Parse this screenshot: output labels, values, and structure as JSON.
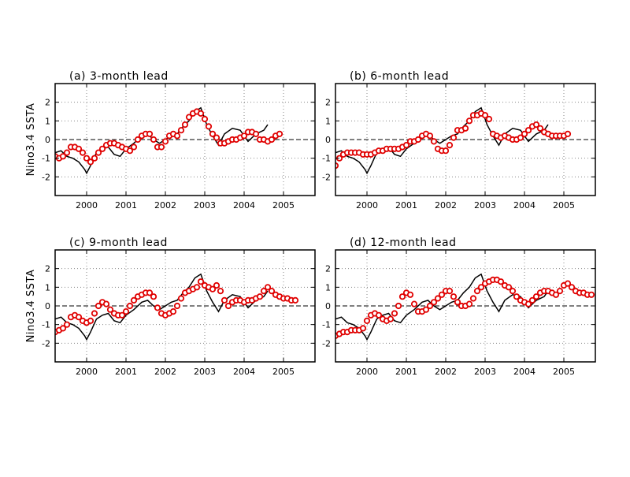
{
  "chart_data": [
    {
      "type": "line",
      "title": "(a) 3-month lead",
      "ylabel": "Nino3.4 SSTA",
      "xlabel": "",
      "x_ticks": [
        "2000",
        "2001",
        "2002",
        "2003",
        "2004",
        "2005"
      ],
      "y_ticks": [
        "2",
        "1",
        "0",
        "-1",
        "-2"
      ],
      "xlim": [
        1999.2,
        2005.8
      ],
      "ylim": [
        -3,
        3
      ],
      "grid": true,
      "colors": {
        "observed": "#000000",
        "forecast": "#e00000"
      },
      "series": [
        {
          "x": [
            1999.2,
            1999.35,
            1999.5,
            1999.65,
            1999.8,
            1999.95,
            2000.0,
            2000.1,
            2000.25,
            2000.4,
            2000.55,
            2000.7,
            2000.85,
            2001.0,
            2001.2,
            2001.4,
            2001.55,
            2001.7,
            2001.85,
            2002.0,
            2002.15,
            2002.3,
            2002.45,
            2002.6,
            2002.75,
            2002.9,
            2003.05,
            2003.2,
            2003.35,
            2003.5,
            2003.7,
            2003.9,
            2004.1,
            2004.3,
            2004.5,
            2004.6
          ],
          "y": [
            -0.7,
            -0.6,
            -0.9,
            -1.0,
            -1.2,
            -1.6,
            -1.8,
            -1.4,
            -0.7,
            -0.5,
            -0.4,
            -0.8,
            -0.9,
            -0.5,
            -0.2,
            0.2,
            0.3,
            0.0,
            -0.2,
            0.0,
            0.2,
            0.3,
            0.7,
            1.0,
            1.5,
            1.7,
            0.8,
            0.2,
            -0.3,
            0.3,
            0.6,
            0.5,
            -0.1,
            0.3,
            0.5,
            0.8
          ]
        },
        {
          "x": [
            1999.2,
            1999.3,
            1999.4,
            1999.5,
            1999.6,
            1999.7,
            1999.8,
            1999.9,
            2000.0,
            2000.1,
            2000.2,
            2000.3,
            2000.4,
            2000.5,
            2000.6,
            2000.7,
            2000.8,
            2000.9,
            2001.0,
            2001.1,
            2001.2,
            2001.3,
            2001.4,
            2001.5,
            2001.6,
            2001.7,
            2001.8,
            2001.9,
            2002.0,
            2002.1,
            2002.2,
            2002.3,
            2002.4,
            2002.5,
            2002.6,
            2002.7,
            2002.8,
            2002.9,
            2003.0,
            2003.1,
            2003.2,
            2003.3,
            2003.4,
            2003.5,
            2003.6,
            2003.7,
            2003.8,
            2003.9,
            2004.0,
            2004.1,
            2004.2,
            2004.3,
            2004.4,
            2004.5,
            2004.6,
            2004.7,
            2004.8,
            2004.9
          ],
          "y": [
            -0.9,
            -1.0,
            -0.9,
            -0.7,
            -0.4,
            -0.4,
            -0.5,
            -0.7,
            -1.0,
            -1.2,
            -1.0,
            -0.7,
            -0.5,
            -0.3,
            -0.2,
            -0.2,
            -0.3,
            -0.4,
            -0.5,
            -0.6,
            -0.4,
            0.0,
            0.2,
            0.3,
            0.3,
            0.0,
            -0.4,
            -0.4,
            -0.1,
            0.2,
            0.3,
            0.2,
            0.5,
            0.8,
            1.2,
            1.4,
            1.5,
            1.4,
            1.1,
            0.7,
            0.3,
            0.1,
            -0.2,
            -0.2,
            -0.1,
            0.0,
            0.0,
            0.1,
            0.2,
            0.4,
            0.4,
            0.3,
            0.0,
            0.0,
            -0.1,
            0.0,
            0.2,
            0.3
          ]
        }
      ]
    },
    {
      "type": "line",
      "title": "(b) 6-month lead",
      "ylabel": "",
      "xlabel": "",
      "x_ticks": [
        "2000",
        "2001",
        "2002",
        "2003",
        "2004",
        "2005"
      ],
      "y_ticks": [
        "2",
        "1",
        "0",
        "-1",
        "-2"
      ],
      "xlim": [
        1999.2,
        2005.8
      ],
      "ylim": [
        -3,
        3
      ],
      "grid": true,
      "colors": {
        "observed": "#000000",
        "forecast": "#e00000"
      },
      "series": [
        {
          "x": [
            1999.2,
            1999.35,
            1999.5,
            1999.65,
            1999.8,
            1999.95,
            2000.0,
            2000.1,
            2000.25,
            2000.4,
            2000.55,
            2000.7,
            2000.85,
            2001.0,
            2001.2,
            2001.4,
            2001.55,
            2001.7,
            2001.85,
            2002.0,
            2002.15,
            2002.3,
            2002.45,
            2002.6,
            2002.75,
            2002.9,
            2003.05,
            2003.2,
            2003.35,
            2003.5,
            2003.7,
            2003.9,
            2004.1,
            2004.3,
            2004.5,
            2004.6
          ],
          "y": [
            -0.7,
            -0.6,
            -0.9,
            -1.0,
            -1.2,
            -1.6,
            -1.8,
            -1.4,
            -0.7,
            -0.5,
            -0.4,
            -0.8,
            -0.9,
            -0.5,
            -0.2,
            0.2,
            0.3,
            0.0,
            -0.2,
            0.0,
            0.2,
            0.3,
            0.7,
            1.0,
            1.5,
            1.7,
            0.8,
            0.2,
            -0.3,
            0.3,
            0.6,
            0.5,
            -0.1,
            0.3,
            0.5,
            0.8
          ]
        },
        {
          "x": [
            1999.2,
            1999.3,
            1999.4,
            1999.5,
            1999.6,
            1999.7,
            1999.8,
            1999.9,
            2000.0,
            2000.1,
            2000.2,
            2000.3,
            2000.4,
            2000.5,
            2000.6,
            2000.7,
            2000.8,
            2000.9,
            2001.0,
            2001.1,
            2001.2,
            2001.3,
            2001.4,
            2001.5,
            2001.6,
            2001.7,
            2001.8,
            2001.9,
            2002.0,
            2002.1,
            2002.2,
            2002.3,
            2002.4,
            2002.5,
            2002.6,
            2002.7,
            2002.8,
            2002.9,
            2003.0,
            2003.1,
            2003.2,
            2003.3,
            2003.4,
            2003.5,
            2003.6,
            2003.7,
            2003.8,
            2003.9,
            2004.0,
            2004.1,
            2004.2,
            2004.3,
            2004.4,
            2004.5,
            2004.6,
            2004.7,
            2004.8,
            2004.9,
            2005.0,
            2005.1
          ],
          "y": [
            -1.4,
            -1.0,
            -0.8,
            -0.7,
            -0.7,
            -0.7,
            -0.7,
            -0.8,
            -0.8,
            -0.8,
            -0.7,
            -0.6,
            -0.6,
            -0.5,
            -0.5,
            -0.5,
            -0.5,
            -0.4,
            -0.3,
            -0.1,
            -0.1,
            0.0,
            0.2,
            0.3,
            0.2,
            -0.1,
            -0.5,
            -0.6,
            -0.6,
            -0.3,
            0.1,
            0.5,
            0.5,
            0.6,
            1.0,
            1.3,
            1.3,
            1.4,
            1.3,
            1.1,
            0.3,
            0.2,
            0.1,
            0.2,
            0.1,
            0.0,
            0.0,
            0.1,
            0.3,
            0.5,
            0.7,
            0.8,
            0.6,
            0.4,
            0.3,
            0.2,
            0.2,
            0.2,
            0.2,
            0.3
          ]
        }
      ]
    },
    {
      "type": "line",
      "title": "(c) 9-month lead",
      "ylabel": "Nino3.4 SSTA",
      "xlabel": "",
      "x_ticks": [
        "2000",
        "2001",
        "2002",
        "2003",
        "2004",
        "2005"
      ],
      "y_ticks": [
        "2",
        "1",
        "0",
        "-1",
        "-2"
      ],
      "xlim": [
        1999.2,
        2005.8
      ],
      "ylim": [
        -3,
        3
      ],
      "grid": true,
      "colors": {
        "observed": "#000000",
        "forecast": "#e00000"
      },
      "series": [
        {
          "x": [
            1999.2,
            1999.35,
            1999.5,
            1999.65,
            1999.8,
            1999.95,
            2000.0,
            2000.1,
            2000.25,
            2000.4,
            2000.55,
            2000.7,
            2000.85,
            2001.0,
            2001.2,
            2001.4,
            2001.55,
            2001.7,
            2001.85,
            2002.0,
            2002.15,
            2002.3,
            2002.45,
            2002.6,
            2002.75,
            2002.9,
            2003.05,
            2003.2,
            2003.35,
            2003.5,
            2003.7,
            2003.9,
            2004.1,
            2004.3,
            2004.5,
            2004.6
          ],
          "y": [
            -0.7,
            -0.6,
            -0.9,
            -1.0,
            -1.2,
            -1.6,
            -1.8,
            -1.4,
            -0.7,
            -0.5,
            -0.4,
            -0.8,
            -0.9,
            -0.5,
            -0.2,
            0.2,
            0.3,
            0.0,
            -0.2,
            0.0,
            0.2,
            0.3,
            0.7,
            1.0,
            1.5,
            1.7,
            0.8,
            0.2,
            -0.3,
            0.3,
            0.6,
            0.5,
            -0.1,
            0.3,
            0.5,
            0.8
          ]
        },
        {
          "x": [
            1999.2,
            1999.3,
            1999.4,
            1999.5,
            1999.6,
            1999.7,
            1999.8,
            1999.9,
            2000.0,
            2000.1,
            2000.2,
            2000.3,
            2000.4,
            2000.5,
            2000.6,
            2000.7,
            2000.8,
            2000.9,
            2001.0,
            2001.1,
            2001.2,
            2001.3,
            2001.4,
            2001.5,
            2001.6,
            2001.7,
            2001.8,
            2001.9,
            2002.0,
            2002.1,
            2002.2,
            2002.3,
            2002.4,
            2002.5,
            2002.6,
            2002.7,
            2002.8,
            2002.9,
            2003.0,
            2003.1,
            2003.2,
            2003.3,
            2003.4,
            2003.5,
            2003.6,
            2003.7,
            2003.8,
            2003.9,
            2004.0,
            2004.1,
            2004.2,
            2004.3,
            2004.4,
            2004.5,
            2004.6,
            2004.7,
            2004.8,
            2004.9,
            2005.0,
            2005.1,
            2005.2,
            2005.3
          ],
          "y": [
            -1.4,
            -1.3,
            -1.2,
            -1.0,
            -0.6,
            -0.5,
            -0.6,
            -0.8,
            -0.9,
            -0.8,
            -0.4,
            0.0,
            0.2,
            0.1,
            -0.2,
            -0.4,
            -0.5,
            -0.5,
            -0.3,
            0.0,
            0.3,
            0.5,
            0.6,
            0.7,
            0.7,
            0.5,
            -0.1,
            -0.4,
            -0.5,
            -0.4,
            -0.3,
            0.0,
            0.4,
            0.7,
            0.8,
            0.9,
            1.0,
            1.3,
            1.1,
            1.0,
            0.9,
            1.1,
            0.8,
            0.3,
            0.0,
            0.2,
            0.3,
            0.3,
            0.2,
            0.3,
            0.3,
            0.4,
            0.5,
            0.8,
            1.0,
            0.8,
            0.6,
            0.5,
            0.4,
            0.4,
            0.3,
            0.3
          ]
        }
      ]
    },
    {
      "type": "line",
      "title": "(d) 12-month lead",
      "ylabel": "",
      "xlabel": "",
      "x_ticks": [
        "2000",
        "2001",
        "2002",
        "2003",
        "2004",
        "2005"
      ],
      "y_ticks": [
        "2",
        "1",
        "0",
        "-1",
        "-2"
      ],
      "xlim": [
        1999.2,
        2005.8
      ],
      "ylim": [
        -3,
        3
      ],
      "grid": true,
      "colors": {
        "observed": "#000000",
        "forecast": "#e00000"
      },
      "series": [
        {
          "x": [
            1999.2,
            1999.35,
            1999.5,
            1999.65,
            1999.8,
            1999.95,
            2000.0,
            2000.1,
            2000.25,
            2000.4,
            2000.55,
            2000.7,
            2000.85,
            2001.0,
            2001.2,
            2001.4,
            2001.55,
            2001.7,
            2001.85,
            2002.0,
            2002.15,
            2002.3,
            2002.45,
            2002.6,
            2002.75,
            2002.9,
            2003.05,
            2003.2,
            2003.35,
            2003.5,
            2003.7,
            2003.9,
            2004.1,
            2004.3,
            2004.5,
            2004.6
          ],
          "y": [
            -0.7,
            -0.6,
            -0.9,
            -1.0,
            -1.2,
            -1.6,
            -1.8,
            -1.4,
            -0.7,
            -0.5,
            -0.4,
            -0.8,
            -0.9,
            -0.5,
            -0.2,
            0.2,
            0.3,
            0.0,
            -0.2,
            0.0,
            0.2,
            0.3,
            0.7,
            1.0,
            1.5,
            1.7,
            0.8,
            0.2,
            -0.3,
            0.3,
            0.6,
            0.5,
            -0.1,
            0.3,
            0.5,
            0.8
          ]
        },
        {
          "x": [
            1999.2,
            1999.3,
            1999.4,
            1999.5,
            1999.6,
            1999.7,
            1999.8,
            1999.9,
            2000.0,
            2000.1,
            2000.2,
            2000.3,
            2000.4,
            2000.5,
            2000.6,
            2000.7,
            2000.8,
            2000.9,
            2001.0,
            2001.1,
            2001.2,
            2001.3,
            2001.4,
            2001.5,
            2001.6,
            2001.7,
            2001.8,
            2001.9,
            2002.0,
            2002.1,
            2002.2,
            2002.3,
            2002.4,
            2002.5,
            2002.6,
            2002.7,
            2002.8,
            2002.9,
            2003.0,
            2003.1,
            2003.2,
            2003.3,
            2003.4,
            2003.5,
            2003.6,
            2003.7,
            2003.8,
            2003.9,
            2004.0,
            2004.1,
            2004.2,
            2004.3,
            2004.4,
            2004.5,
            2004.6,
            2004.7,
            2004.8,
            2004.9,
            2005.0,
            2005.1,
            2005.2,
            2005.3,
            2005.4,
            2005.5,
            2005.6,
            2005.7
          ],
          "y": [
            -1.6,
            -1.5,
            -1.4,
            -1.4,
            -1.3,
            -1.3,
            -1.3,
            -1.2,
            -0.8,
            -0.5,
            -0.4,
            -0.5,
            -0.7,
            -0.8,
            -0.7,
            -0.4,
            0.0,
            0.5,
            0.7,
            0.6,
            0.1,
            -0.3,
            -0.3,
            -0.2,
            0.0,
            0.2,
            0.4,
            0.6,
            0.8,
            0.8,
            0.5,
            0.2,
            0.0,
            0.0,
            0.1,
            0.4,
            0.8,
            1.0,
            1.2,
            1.3,
            1.4,
            1.4,
            1.3,
            1.1,
            1.0,
            0.8,
            0.5,
            0.3,
            0.2,
            0.1,
            0.3,
            0.5,
            0.7,
            0.8,
            0.8,
            0.7,
            0.6,
            0.8,
            1.1,
            1.2,
            1.0,
            0.8,
            0.7,
            0.7,
            0.6,
            0.6
          ]
        }
      ]
    }
  ]
}
